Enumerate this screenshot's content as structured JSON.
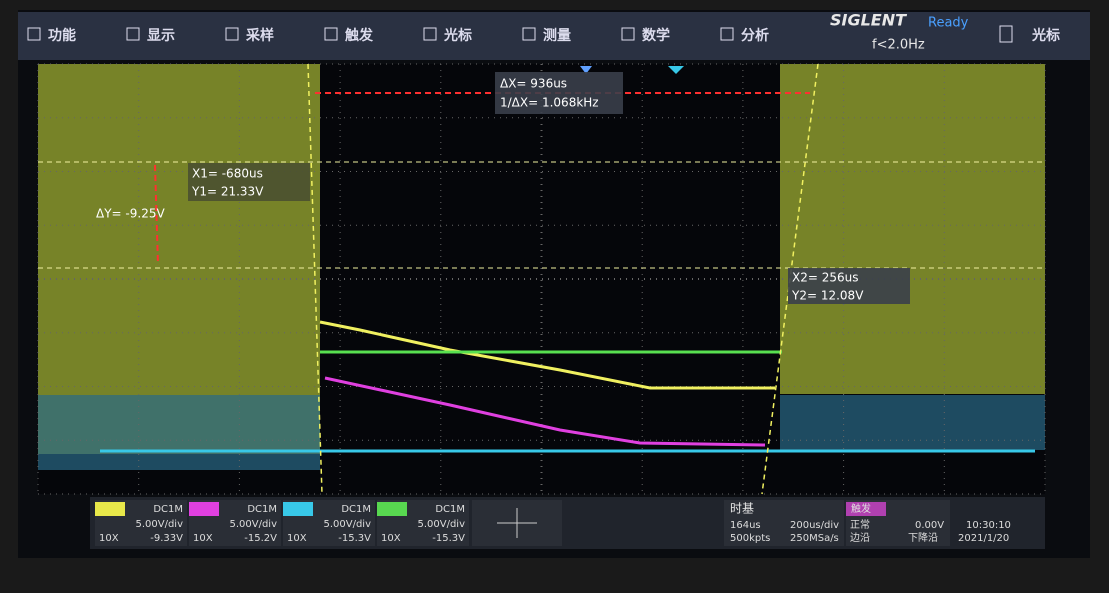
{
  "menu": [
    "功能",
    "显示",
    "采样",
    "触发",
    "光标",
    "测量",
    "数学",
    "分析"
  ],
  "status": {
    "brand": "SIGLENT",
    "state": "Ready",
    "frequency": "f<2.0Hz",
    "active_menu": "光标"
  },
  "cursors": {
    "delta_x": "ΔX= 936us",
    "inverse_delta_x": "1/ΔX= 1.068kHz",
    "x1": "X1= -680us",
    "y1": "Y1= 21.33V",
    "delta_y": "ΔY= -9.25V",
    "x2": "X2= 256us",
    "y2": "Y2= 12.08V"
  },
  "channels": [
    {
      "color": "#e8e84a",
      "coupling": "DC1M",
      "scale": "5.00V/div",
      "probe": "10X",
      "offset": "-9.33V"
    },
    {
      "color": "#e040e0",
      "coupling": "DC1M",
      "scale": "5.00V/div",
      "probe": "10X",
      "offset": "-15.2V"
    },
    {
      "color": "#38c8e8",
      "coupling": "DC1M",
      "scale": "5.00V/div",
      "probe": "10X",
      "offset": "-15.3V"
    },
    {
      "color": "#58d850",
      "coupling": "DC1M",
      "scale": "5.00V/div",
      "probe": "10X",
      "offset": "-15.3V"
    }
  ],
  "timebase": {
    "title": "时基",
    "delay": "164us",
    "scale": "200us/div",
    "points": "500kpts",
    "rate": "250MSa/s"
  },
  "trigger": {
    "title": "触发",
    "mode": "正常",
    "type": "边沿",
    "level": "0.00V",
    "slope": "下降沿"
  },
  "clock": {
    "time": "10:30:10",
    "date": "2021/1/20"
  }
}
